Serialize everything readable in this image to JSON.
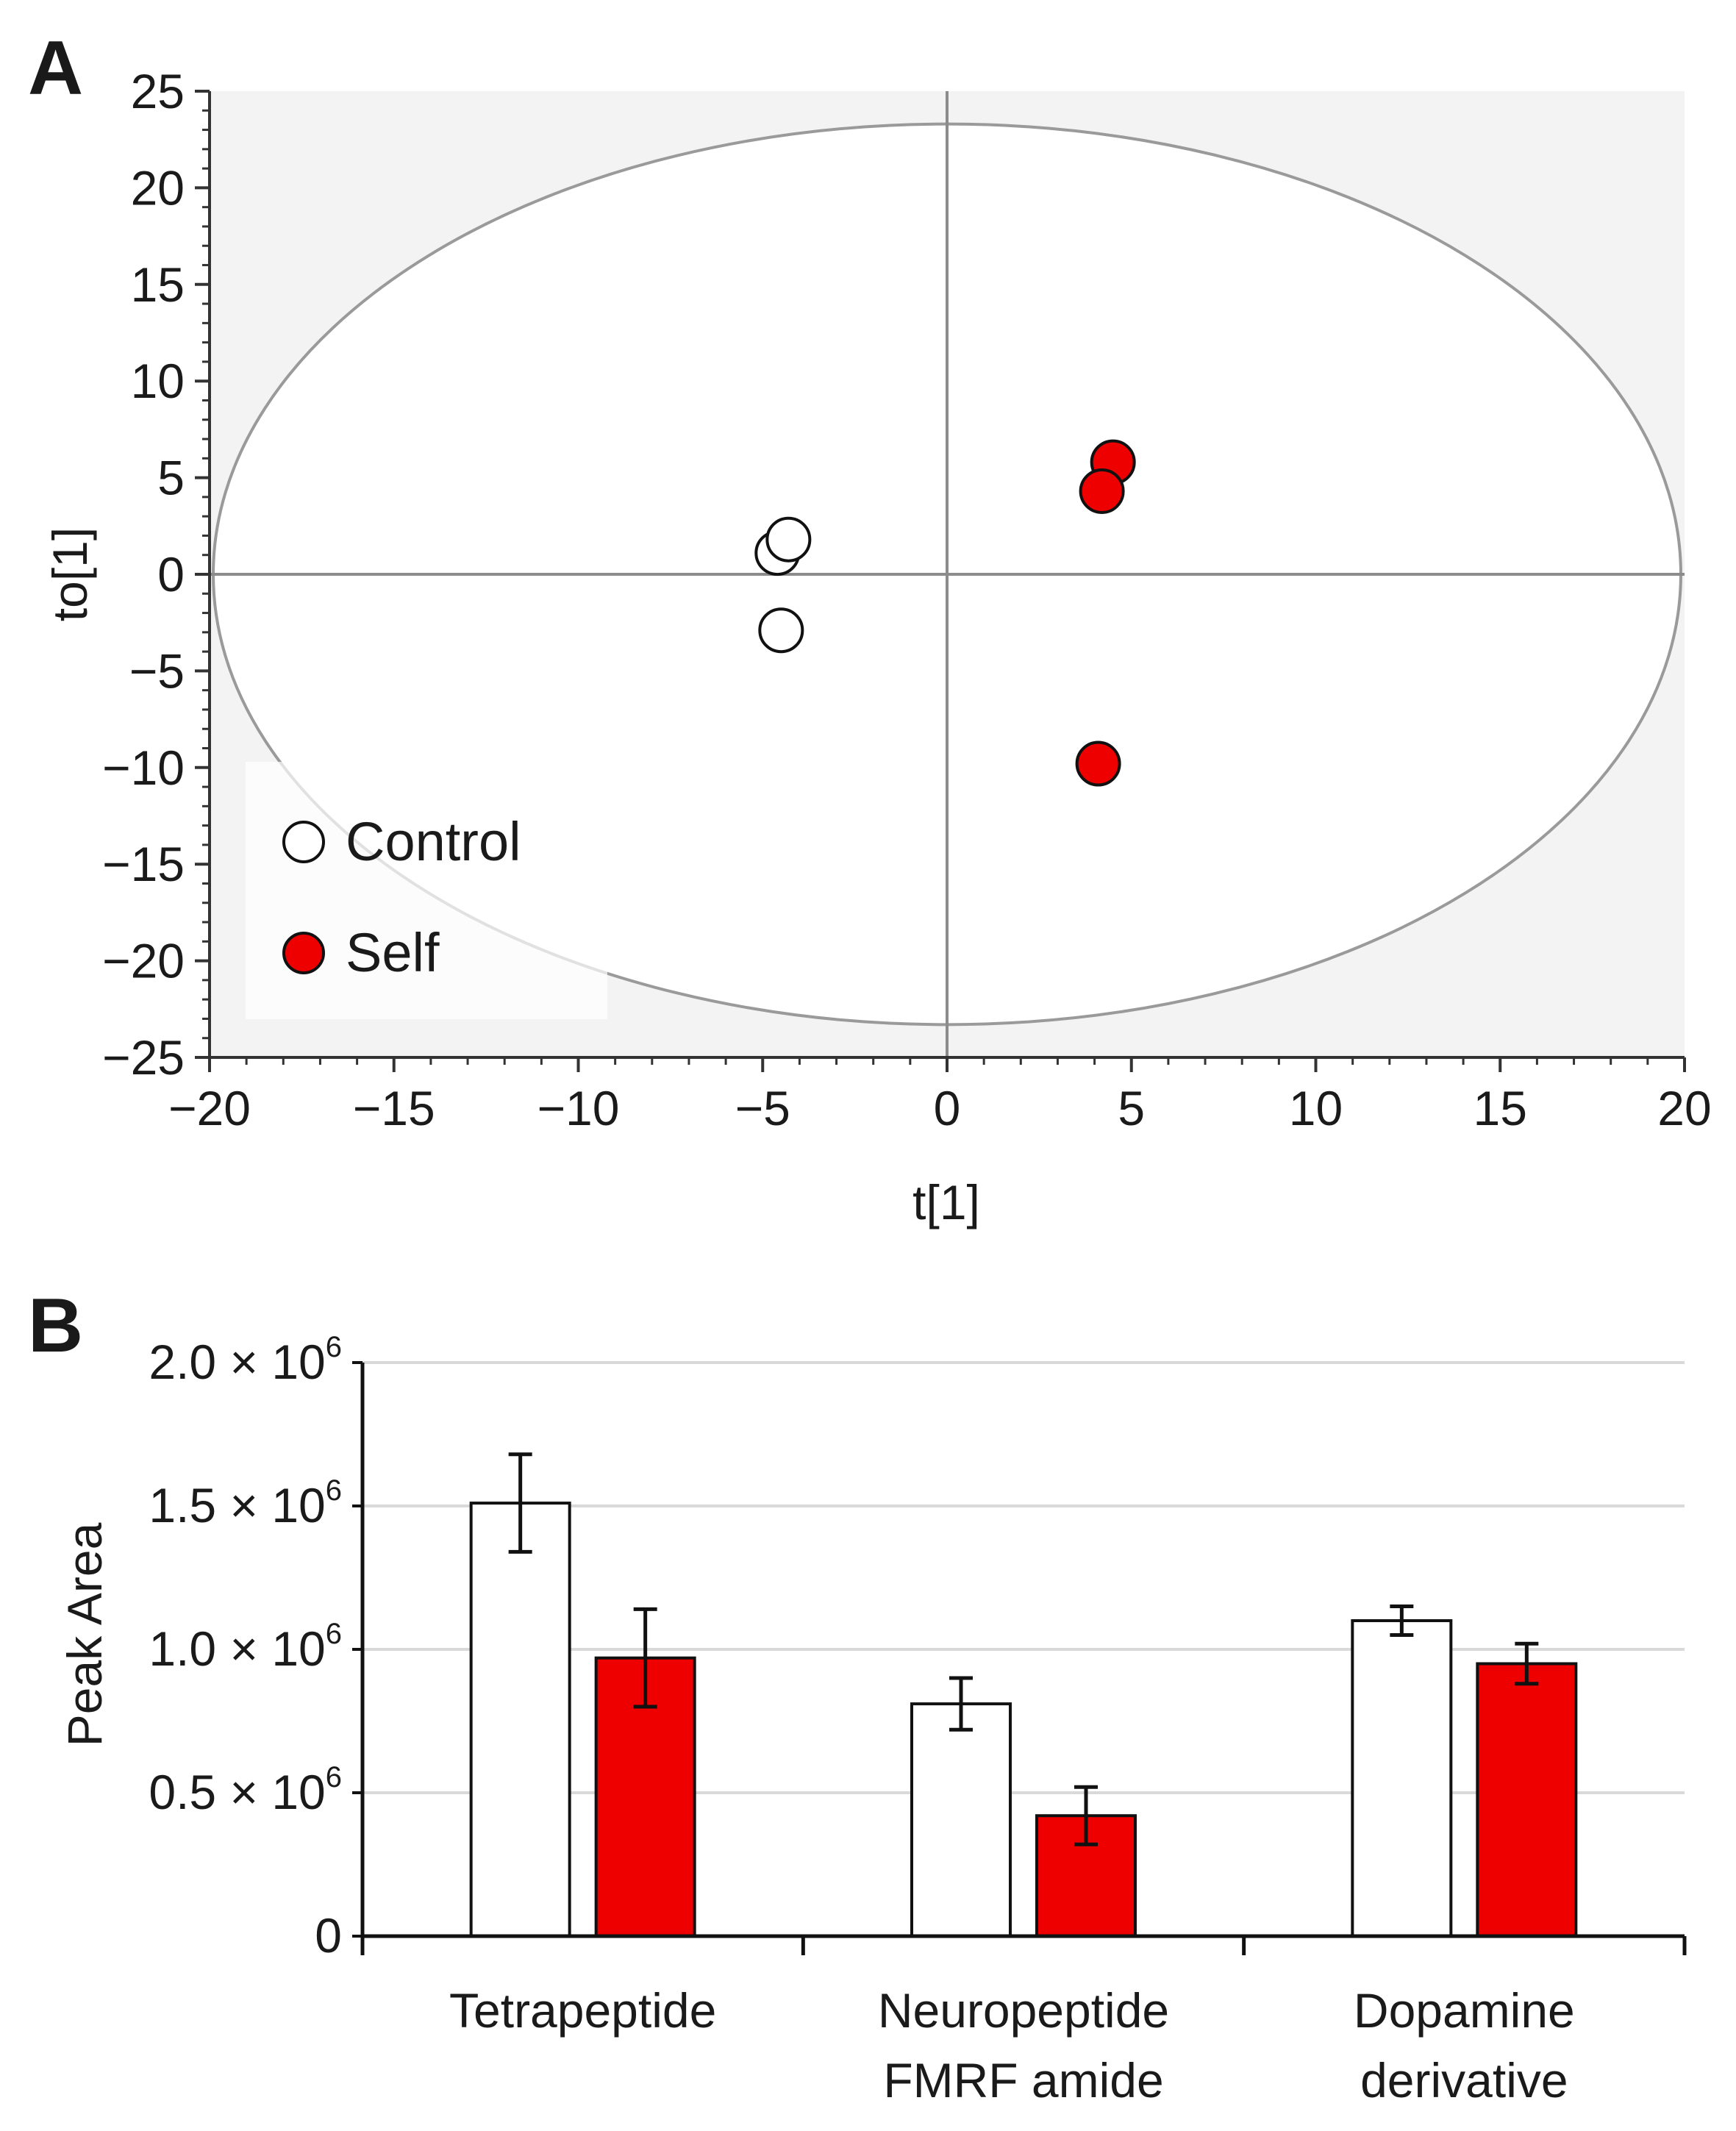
{
  "chart_data": [
    {
      "panel_label": "A",
      "type": "scatter",
      "xlabel": "t[1]",
      "ylabel": "to[1]",
      "xlim": [
        -20,
        20
      ],
      "ylim": [
        -25,
        25
      ],
      "xticks": [
        "−20",
        "−15",
        "−10",
        "−5",
        "0",
        "5",
        "10",
        "15",
        "20"
      ],
      "yticks": [
        "25",
        "20",
        "15",
        "10",
        "5",
        "0",
        "−5",
        "−10",
        "−15",
        "−20",
        "−25"
      ],
      "ellipse": {
        "cx": 0,
        "cy": 0,
        "rx": 19.9,
        "ry": 23.3
      },
      "legend_position": "bottom-left",
      "series": [
        {
          "name": "Control",
          "color": "#ffffff",
          "points": [
            {
              "x": -4.6,
              "y": 1.1
            },
            {
              "x": -4.3,
              "y": 1.8
            },
            {
              "x": -4.5,
              "y": -2.9
            }
          ]
        },
        {
          "name": "Self",
          "color": "#ee0000",
          "points": [
            {
              "x": 4.5,
              "y": 5.8
            },
            {
              "x": 4.2,
              "y": 4.3
            },
            {
              "x": 4.1,
              "y": -9.8
            }
          ]
        }
      ]
    },
    {
      "panel_label": "B",
      "type": "bar",
      "ylabel": "Peak Area",
      "ylim": [
        0,
        2000000
      ],
      "yticks": [
        {
          "mant": "0",
          "exp": ""
        },
        {
          "mant": "0.5 × 10",
          "exp": "6"
        },
        {
          "mant": "1.0 × 10",
          "exp": "6"
        },
        {
          "mant": "1.5 × 10",
          "exp": "6"
        },
        {
          "mant": "2.0 × 10",
          "exp": "6"
        }
      ],
      "categories": [
        [
          "Tetrapeptide"
        ],
        [
          "Neuropeptide",
          "FMRF amide"
        ],
        [
          "Dopamine",
          "derivative"
        ]
      ],
      "series": [
        {
          "name": "Control",
          "color": "#ffffff",
          "values": [
            1510000,
            810000,
            1100000
          ],
          "errors": [
            170000,
            90000,
            50000
          ]
        },
        {
          "name": "Self",
          "color": "#ee0000",
          "values": [
            970000,
            420000,
            950000
          ],
          "errors": [
            170000,
            100000,
            70000
          ]
        }
      ]
    }
  ]
}
